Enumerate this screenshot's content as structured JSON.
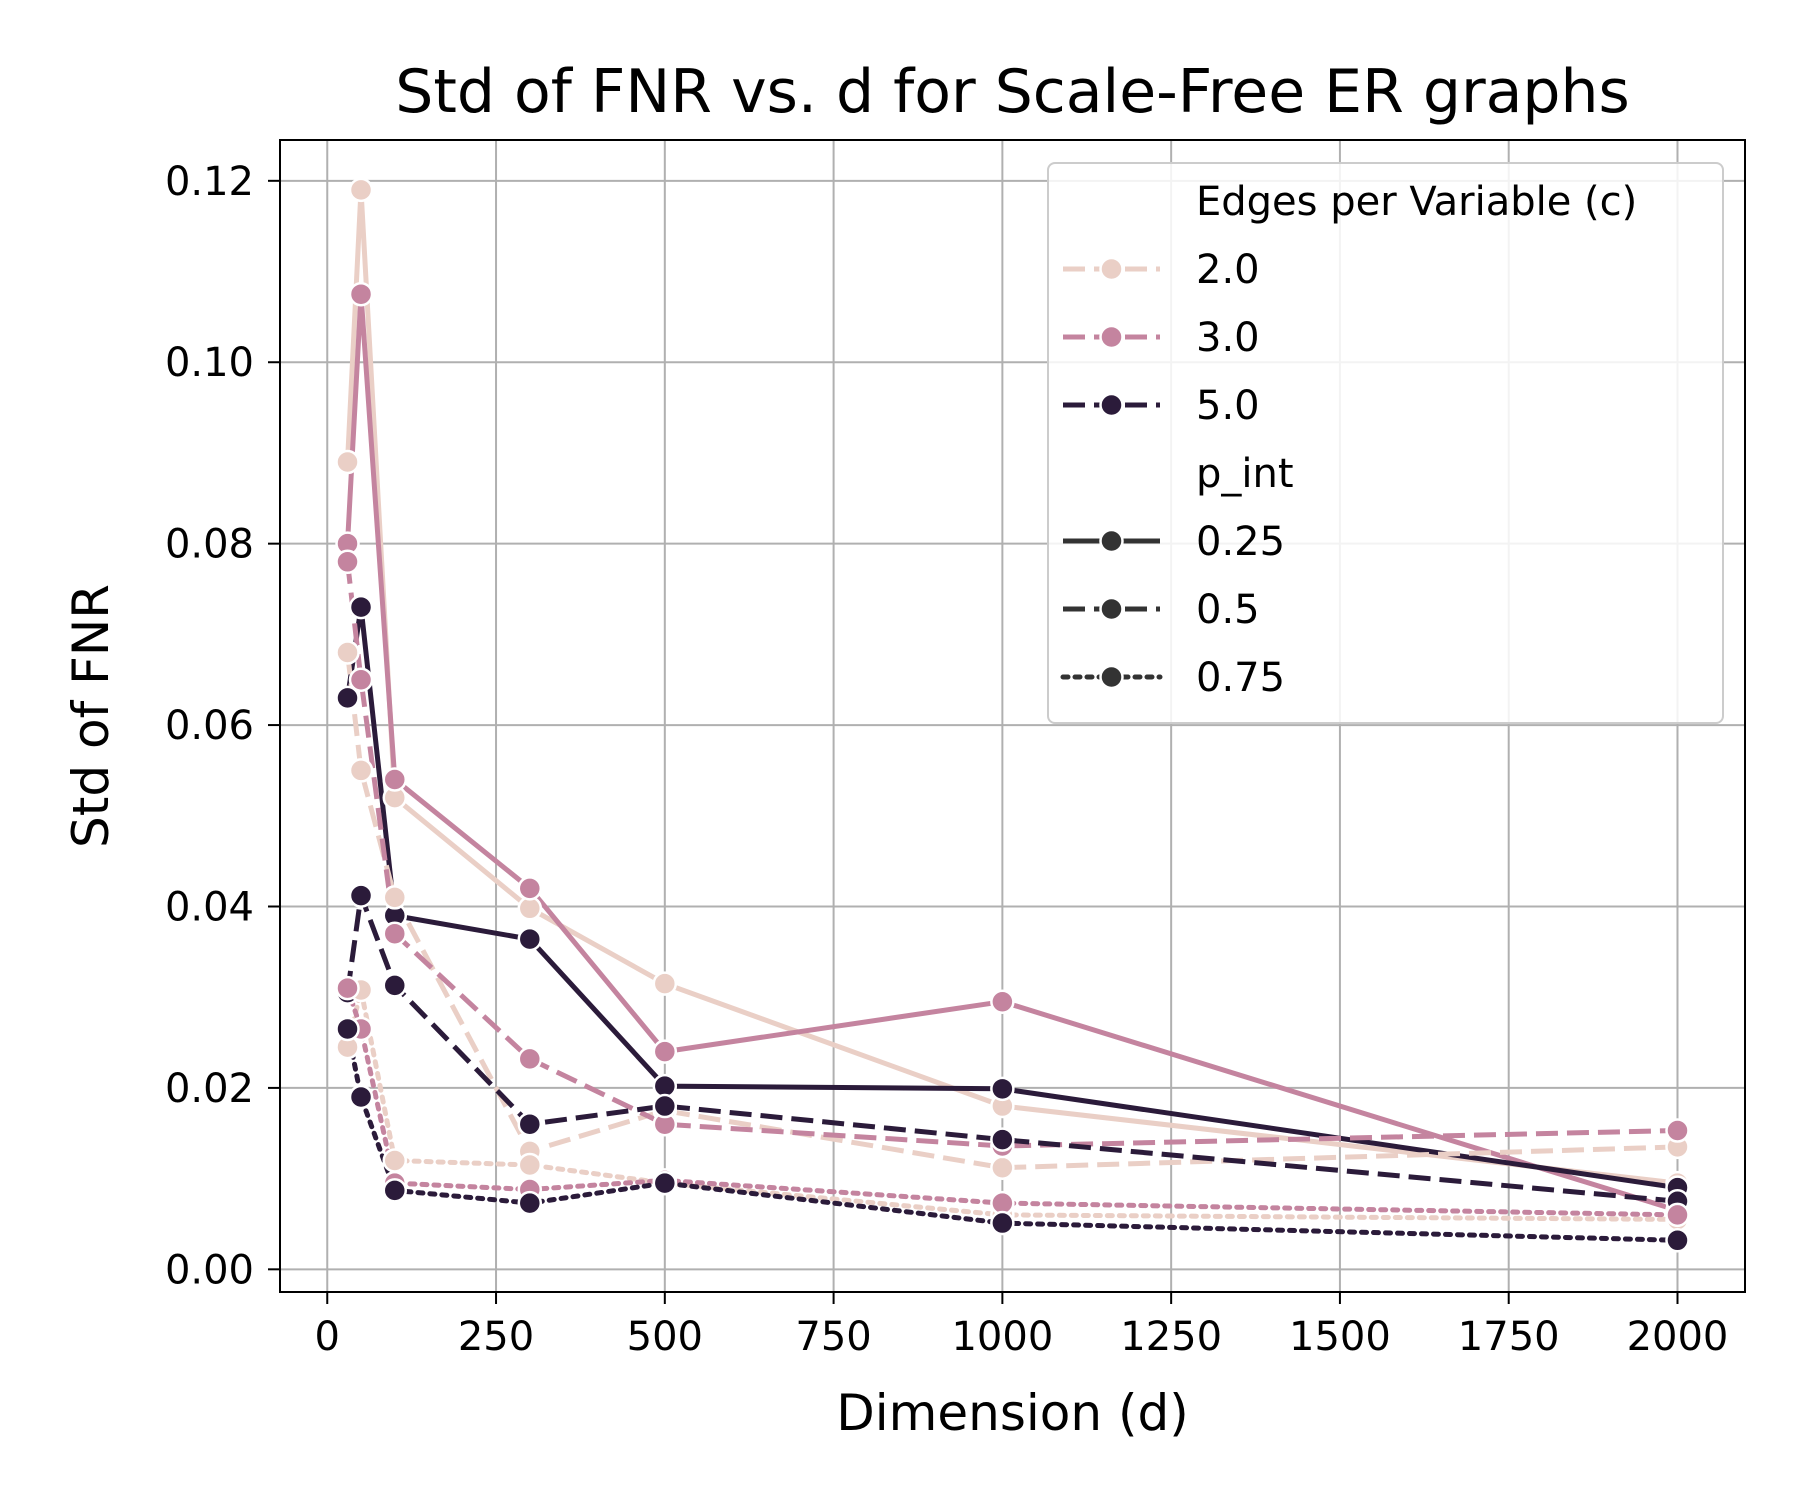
{
  "chart_data": {
    "type": "line",
    "title": "Std of FNR vs. d for Scale-Free ER graphs",
    "xlabel": "Dimension (d)",
    "ylabel": "Std of FNR",
    "xlim": [
      -70,
      2100
    ],
    "ylim": [
      -0.0025,
      0.1245
    ],
    "xticks": [
      0,
      250,
      500,
      750,
      1000,
      1250,
      1500,
      1750,
      2000
    ],
    "xtick_labels": [
      "0",
      "250",
      "500",
      "750",
      "1000",
      "1250",
      "1500",
      "1750",
      "2000"
    ],
    "yticks": [
      0,
      0.02,
      0.04,
      0.06,
      0.08,
      0.1,
      0.12
    ],
    "ytick_labels": [
      "0.00",
      "0.02",
      "0.04",
      "0.06",
      "0.08",
      "0.10",
      "0.12"
    ],
    "grid": true,
    "legend": {
      "placement": "top-right",
      "hue_title": "Edges per Variable (c)",
      "hue_entries": [
        {
          "label": "2.0",
          "color": "#EACFC6"
        },
        {
          "label": "3.0",
          "color": "#C4849F"
        },
        {
          "label": "5.0",
          "color": "#2B1B3A"
        }
      ],
      "style_title": "p_int",
      "style_entries": [
        {
          "label": "0.25",
          "dash": "solid"
        },
        {
          "label": "0.5",
          "dash": "dashed"
        },
        {
          "label": "0.75",
          "dash": "dotted"
        }
      ]
    },
    "series": [
      {
        "name": "c=2.0, p_int=0.25",
        "color": "#EACFC6",
        "dash": "solid",
        "x": [
          30,
          50,
          100,
          300,
          500,
          1000,
          2000
        ],
        "y": [
          0.089,
          0.119,
          0.052,
          0.0398,
          0.0315,
          0.018,
          0.0095
        ]
      },
      {
        "name": "c=3.0, p_int=0.25",
        "color": "#C4849F",
        "dash": "solid",
        "x": [
          30,
          50,
          100,
          300,
          500,
          1000,
          2000
        ],
        "y": [
          0.08,
          0.1075,
          0.054,
          0.042,
          0.024,
          0.0295,
          0.0065
        ]
      },
      {
        "name": "c=5.0, p_int=0.25",
        "color": "#2B1B3A",
        "dash": "solid",
        "x": [
          30,
          50,
          100,
          300,
          500,
          1000,
          2000
        ],
        "y": [
          0.063,
          0.073,
          0.039,
          0.0364,
          0.0202,
          0.0199,
          0.009
        ]
      },
      {
        "name": "c=2.0, p_int=0.5",
        "color": "#EACFC6",
        "dash": "dashed",
        "x": [
          30,
          50,
          100,
          300,
          500,
          1000,
          2000
        ],
        "y": [
          0.068,
          0.055,
          0.041,
          0.013,
          0.0175,
          0.0112,
          0.0135
        ]
      },
      {
        "name": "c=3.0, p_int=0.5",
        "color": "#C4849F",
        "dash": "dashed",
        "x": [
          30,
          50,
          100,
          300,
          500,
          1000,
          2000
        ],
        "y": [
          0.078,
          0.065,
          0.037,
          0.0232,
          0.016,
          0.0136,
          0.0153
        ]
      },
      {
        "name": "c=5.0, p_int=0.5",
        "color": "#2B1B3A",
        "dash": "dashed",
        "x": [
          30,
          50,
          100,
          300,
          500,
          1000,
          2000
        ],
        "y": [
          0.0305,
          0.0412,
          0.0313,
          0.016,
          0.018,
          0.0143,
          0.0075
        ]
      },
      {
        "name": "c=2.0, p_int=0.75",
        "color": "#EACFC6",
        "dash": "dotted",
        "x": [
          30,
          50,
          100,
          300,
          500,
          1000,
          2000
        ],
        "y": [
          0.0245,
          0.0308,
          0.012,
          0.0115,
          0.0095,
          0.006,
          0.0055
        ]
      },
      {
        "name": "c=3.0, p_int=0.75",
        "color": "#C4849F",
        "dash": "dotted",
        "x": [
          30,
          50,
          100,
          300,
          500,
          1000,
          2000
        ],
        "y": [
          0.031,
          0.0265,
          0.0095,
          0.0088,
          0.0098,
          0.0073,
          0.006
        ]
      },
      {
        "name": "c=5.0, p_int=0.75",
        "color": "#2B1B3A",
        "dash": "dotted",
        "x": [
          30,
          50,
          100,
          300,
          500,
          1000,
          2000
        ],
        "y": [
          0.0265,
          0.019,
          0.0087,
          0.0073,
          0.0095,
          0.0051,
          0.0032
        ]
      }
    ]
  }
}
